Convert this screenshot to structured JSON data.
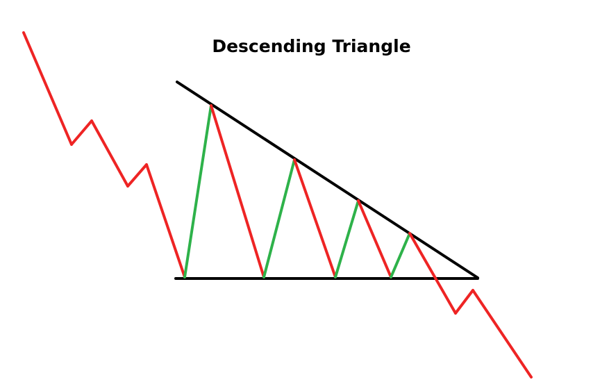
{
  "title": "Descending Triangle",
  "colors": {
    "background": "#ffffff",
    "down_move": "#ee2424",
    "up_move": "#2eb24a",
    "trendline": "#000000"
  },
  "pattern": {
    "type": "descending-triangle",
    "upper_trendline": "descending resistance",
    "lower_trendline": "flat support",
    "breakout_direction": "down"
  }
}
